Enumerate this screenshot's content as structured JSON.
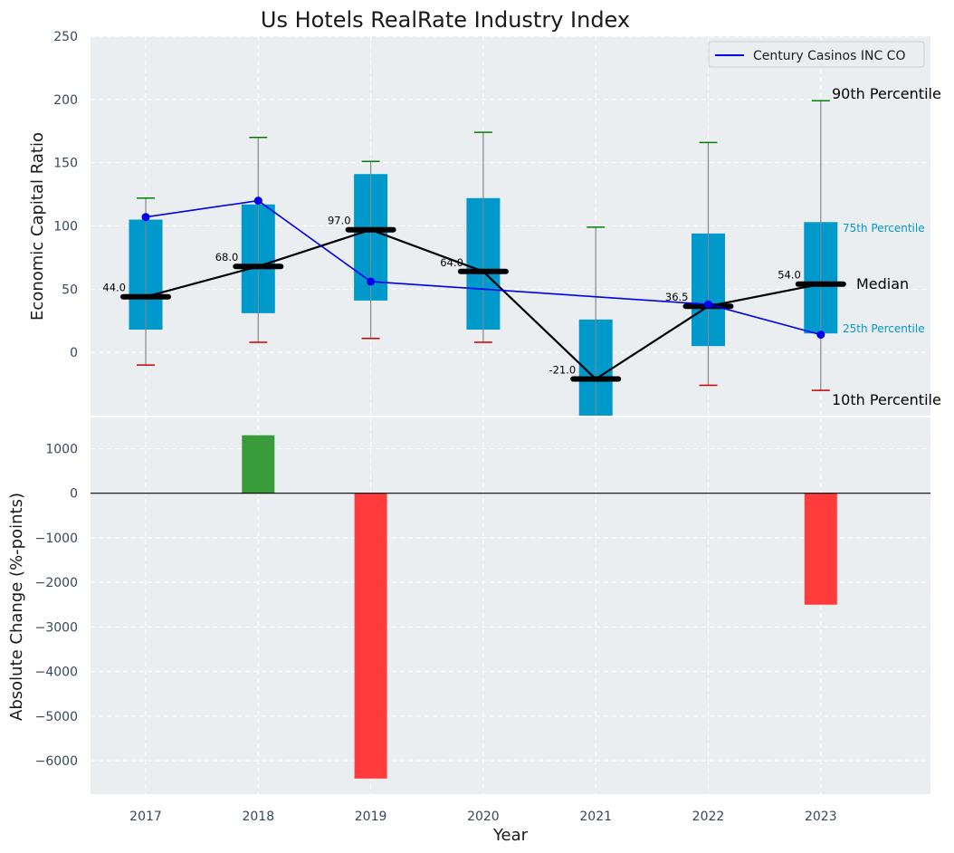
{
  "chart_data": [
    {
      "type": "box",
      "title": "Us Hotels RealRate Industry Index",
      "xlabel": "",
      "ylabel": "Economic Capital Ratio",
      "ylim": [
        -50,
        250
      ],
      "yticks": [
        0,
        50,
        100,
        150,
        200,
        250
      ],
      "grid": true,
      "legend_position": "top-right",
      "categories": [
        "2017",
        "2018",
        "2019",
        "2020",
        "2021",
        "2022",
        "2023"
      ],
      "percentiles": {
        "p10": [
          -10,
          8,
          11,
          8,
          null,
          -26,
          -30
        ],
        "p25": [
          18,
          31,
          41,
          18,
          -50,
          5,
          15
        ],
        "median": [
          44.0,
          68.0,
          97.0,
          64.0,
          -21.0,
          36.5,
          54.0
        ],
        "p75": [
          105,
          117,
          141,
          122,
          26,
          94,
          103
        ],
        "p90": [
          122,
          170,
          151,
          174,
          99,
          166,
          199
        ]
      },
      "median_labels": [
        "44.0",
        "68.0",
        "97.0",
        "64.0",
        "-21.0",
        "36.5",
        "54.0"
      ],
      "series": [
        {
          "name": "Century Casinos INC CO",
          "values": [
            107,
            120,
            56,
            null,
            null,
            38,
            14
          ],
          "color": "#0000ee"
        }
      ],
      "annotations": {
        "p90": "90th Percentile",
        "p75": "75th Percentile",
        "median": "Median",
        "p25": "25th Percentile",
        "p10": "10th Percentile"
      },
      "colors": {
        "box": "#0099cc",
        "median": "#000000",
        "whisker_top": "#008000",
        "whisker_bottom": "#cc0000",
        "whisker_line": "#888888",
        "background": "#eaeef0"
      }
    },
    {
      "type": "bar",
      "xlabel": "Year",
      "ylabel": "Absolute Change (%-points)",
      "ylim": [
        -6750,
        1700
      ],
      "yticks": [
        -6000,
        -5000,
        -4000,
        -3000,
        -2000,
        -1000,
        0,
        1000
      ],
      "grid": true,
      "categories": [
        "2017",
        "2018",
        "2019",
        "2020",
        "2021",
        "2022",
        "2023"
      ],
      "values": [
        null,
        1300,
        -6400,
        null,
        null,
        null,
        -2500
      ],
      "colors": {
        "positive": "#3a9b3a",
        "negative": "#ff3b3b",
        "zero_line": "#000000"
      }
    }
  ]
}
